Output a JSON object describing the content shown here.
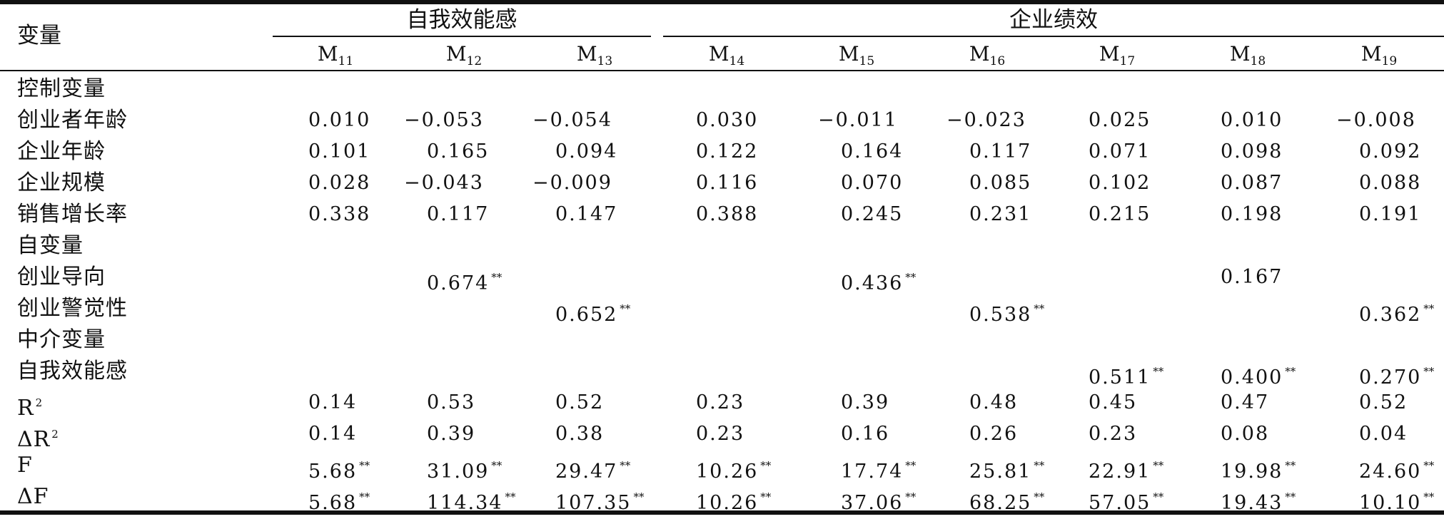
{
  "header": {
    "variable_label": "变量",
    "group_self_efficacy": "自我效能感",
    "group_performance": "企业绩效",
    "models": [
      {
        "base": "M",
        "sub": "11"
      },
      {
        "base": "M",
        "sub": "12"
      },
      {
        "base": "M",
        "sub": "13"
      },
      {
        "base": "M",
        "sub": "14"
      },
      {
        "base": "M",
        "sub": "15"
      },
      {
        "base": "M",
        "sub": "16"
      },
      {
        "base": "M",
        "sub": "17"
      },
      {
        "base": "M",
        "sub": "18"
      },
      {
        "base": "M",
        "sub": "19"
      }
    ]
  },
  "rows": [
    {
      "label": "控制变量",
      "cells": [
        "",
        "",
        "",
        "",
        "",
        "",
        "",
        "",
        ""
      ],
      "stars": [
        "",
        "",
        "",
        "",
        "",
        "",
        "",
        "",
        ""
      ]
    },
    {
      "label": "创业者年龄",
      "cells": [
        "0.010",
        "−0.053",
        "−0.054",
        "0.030",
        "−0.011",
        "−0.023",
        "0.025",
        "0.010",
        "−0.008"
      ],
      "stars": [
        "",
        "",
        "",
        "",
        "",
        "",
        "",
        "",
        ""
      ]
    },
    {
      "label": "企业年龄",
      "cells": [
        "0.101",
        "0.165",
        "0.094",
        "0.122",
        "0.164",
        "0.117",
        "0.071",
        "0.098",
        "0.092"
      ],
      "stars": [
        "",
        "",
        "",
        "",
        "",
        "",
        "",
        "",
        ""
      ]
    },
    {
      "label": "企业规模",
      "cells": [
        "0.028",
        "−0.043",
        "−0.009",
        "0.116",
        "0.070",
        "0.085",
        "0.102",
        "0.087",
        "0.088"
      ],
      "stars": [
        "",
        "",
        "",
        "",
        "",
        "",
        "",
        "",
        ""
      ]
    },
    {
      "label": "销售增长率",
      "cells": [
        "0.338",
        "0.117",
        "0.147",
        "0.388",
        "0.245",
        "0.231",
        "0.215",
        "0.198",
        "0.191"
      ],
      "stars": [
        "",
        "",
        "",
        "",
        "",
        "",
        "",
        "",
        ""
      ]
    },
    {
      "label": "自变量",
      "cells": [
        "",
        "",
        "",
        "",
        "",
        "",
        "",
        "",
        ""
      ],
      "stars": [
        "",
        "",
        "",
        "",
        "",
        "",
        "",
        "",
        ""
      ]
    },
    {
      "label": "创业导向",
      "cells": [
        "",
        "0.674",
        "",
        "",
        "0.436",
        "",
        "",
        "0.167",
        ""
      ],
      "stars": [
        "",
        "**",
        "",
        "",
        "**",
        "",
        "",
        "",
        ""
      ]
    },
    {
      "label": "创业警觉性",
      "cells": [
        "",
        "",
        "0.652",
        "",
        "",
        "0.538",
        "",
        "",
        "0.362"
      ],
      "stars": [
        "",
        "",
        "**",
        "",
        "",
        "**",
        "",
        "",
        "**"
      ]
    },
    {
      "label": "中介变量",
      "cells": [
        "",
        "",
        "",
        "",
        "",
        "",
        "",
        "",
        ""
      ],
      "stars": [
        "",
        "",
        "",
        "",
        "",
        "",
        "",
        "",
        ""
      ]
    },
    {
      "label": "自我效能感",
      "cells": [
        "",
        "",
        "",
        "",
        "",
        "",
        "0.511",
        "0.400",
        "0.270"
      ],
      "stars": [
        "",
        "",
        "",
        "",
        "",
        "",
        "**",
        "**",
        "**"
      ]
    },
    {
      "label": "R",
      "label_sup": "2",
      "cells": [
        "0.14",
        "0.53",
        "0.52",
        "0.23",
        "0.39",
        "0.48",
        "0.45",
        "0.47",
        "0.52"
      ],
      "stars": [
        "",
        "",
        "",
        "",
        "",
        "",
        "",
        "",
        ""
      ]
    },
    {
      "label": "ΔR",
      "label_sup": "2",
      "cells": [
        "0.14",
        "0.39",
        "0.38",
        "0.23",
        "0.16",
        "0.26",
        "0.23",
        "0.08",
        "0.04"
      ],
      "stars": [
        "",
        "",
        "",
        "",
        "",
        "",
        "",
        "",
        ""
      ]
    },
    {
      "label": "F",
      "cells": [
        "5.68",
        "31.09",
        "29.47",
        "10.26",
        "17.74",
        "25.81",
        "22.91",
        "19.98",
        "24.60"
      ],
      "stars": [
        "**",
        "**",
        "**",
        "**",
        "**",
        "**",
        "**",
        "**",
        "**"
      ]
    },
    {
      "label": "ΔF",
      "cells": [
        "5.68",
        "114.34",
        "107.35",
        "10.26",
        "37.06",
        "68.25",
        "57.05",
        "19.43",
        "10.10"
      ],
      "stars": [
        "**",
        "**",
        "**",
        "**",
        "**",
        "**",
        "**",
        "**",
        "**"
      ]
    }
  ]
}
